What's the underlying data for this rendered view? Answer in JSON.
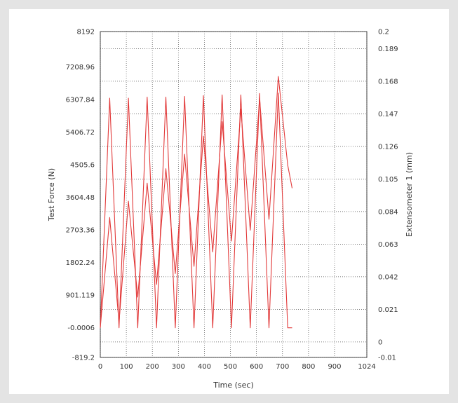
{
  "chart_data": {
    "type": "line",
    "title": "",
    "xlabel": "Time (sec)",
    "ylabel": "Test Force (N)",
    "y2label": "Extensometer 1 (mm)",
    "xlim": [
      0,
      1024
    ],
    "ylim": [
      -819.2,
      8192
    ],
    "y2lim": [
      -0.01,
      0.2
    ],
    "x_ticks": [
      "0",
      "100",
      "200",
      "300",
      "400",
      "500",
      "600",
      "700",
      "800",
      "900",
      "1024"
    ],
    "x_tick_values": [
      0,
      100,
      200,
      300,
      400,
      500,
      600,
      700,
      800,
      900,
      1024
    ],
    "y_ticks": [
      "8192",
      "7208.96",
      "6307.84",
      "5406.72",
      "4505.6",
      "3604.48",
      "2703.36",
      "1802.24",
      "901.119",
      "-0.0006",
      "-819.2"
    ],
    "y_tick_values": [
      8192,
      7208.96,
      6307.84,
      5406.72,
      4505.6,
      3604.48,
      2703.36,
      1802.24,
      901.119,
      -0.0006,
      -819.2
    ],
    "y2_ticks": [
      "0.2",
      "0.189",
      "0.168",
      "0.147",
      "0.126",
      "0.105",
      "0.084",
      "0.063",
      "0.042",
      "0.021",
      "0",
      "-0.01"
    ],
    "y2_tick_values": [
      0.2,
      0.189,
      0.168,
      0.147,
      0.126,
      0.105,
      0.084,
      0.063,
      0.042,
      0.021,
      0,
      -0.01
    ],
    "grid": true,
    "series_color": "#e23a3a",
    "series": [
      {
        "axis": "left",
        "x": [
          0,
          36,
          72,
          108,
          144,
          180,
          216,
          252,
          288,
          324,
          360,
          396,
          432,
          468,
          504,
          540,
          576,
          612,
          648,
          684,
          720,
          737
        ],
        "y": [
          0,
          6350,
          0,
          6350,
          0,
          6380,
          0,
          6380,
          0,
          6400,
          0,
          6420,
          0,
          6440,
          0,
          6440,
          0,
          6480,
          0,
          6490,
          0,
          0
        ]
      },
      {
        "axis": "left",
        "x": [
          0,
          36,
          72,
          108,
          144,
          180,
          216,
          252,
          288,
          324,
          360,
          396,
          432,
          468,
          504,
          540,
          576,
          612,
          648,
          684,
          720,
          737
        ],
        "y": [
          0,
          3050,
          150,
          3500,
          850,
          4000,
          1200,
          4400,
          1500,
          4800,
          1700,
          5300,
          2100,
          5700,
          2400,
          6050,
          2700,
          6350,
          3000,
          6950,
          4500,
          3860
        ]
      }
    ]
  }
}
